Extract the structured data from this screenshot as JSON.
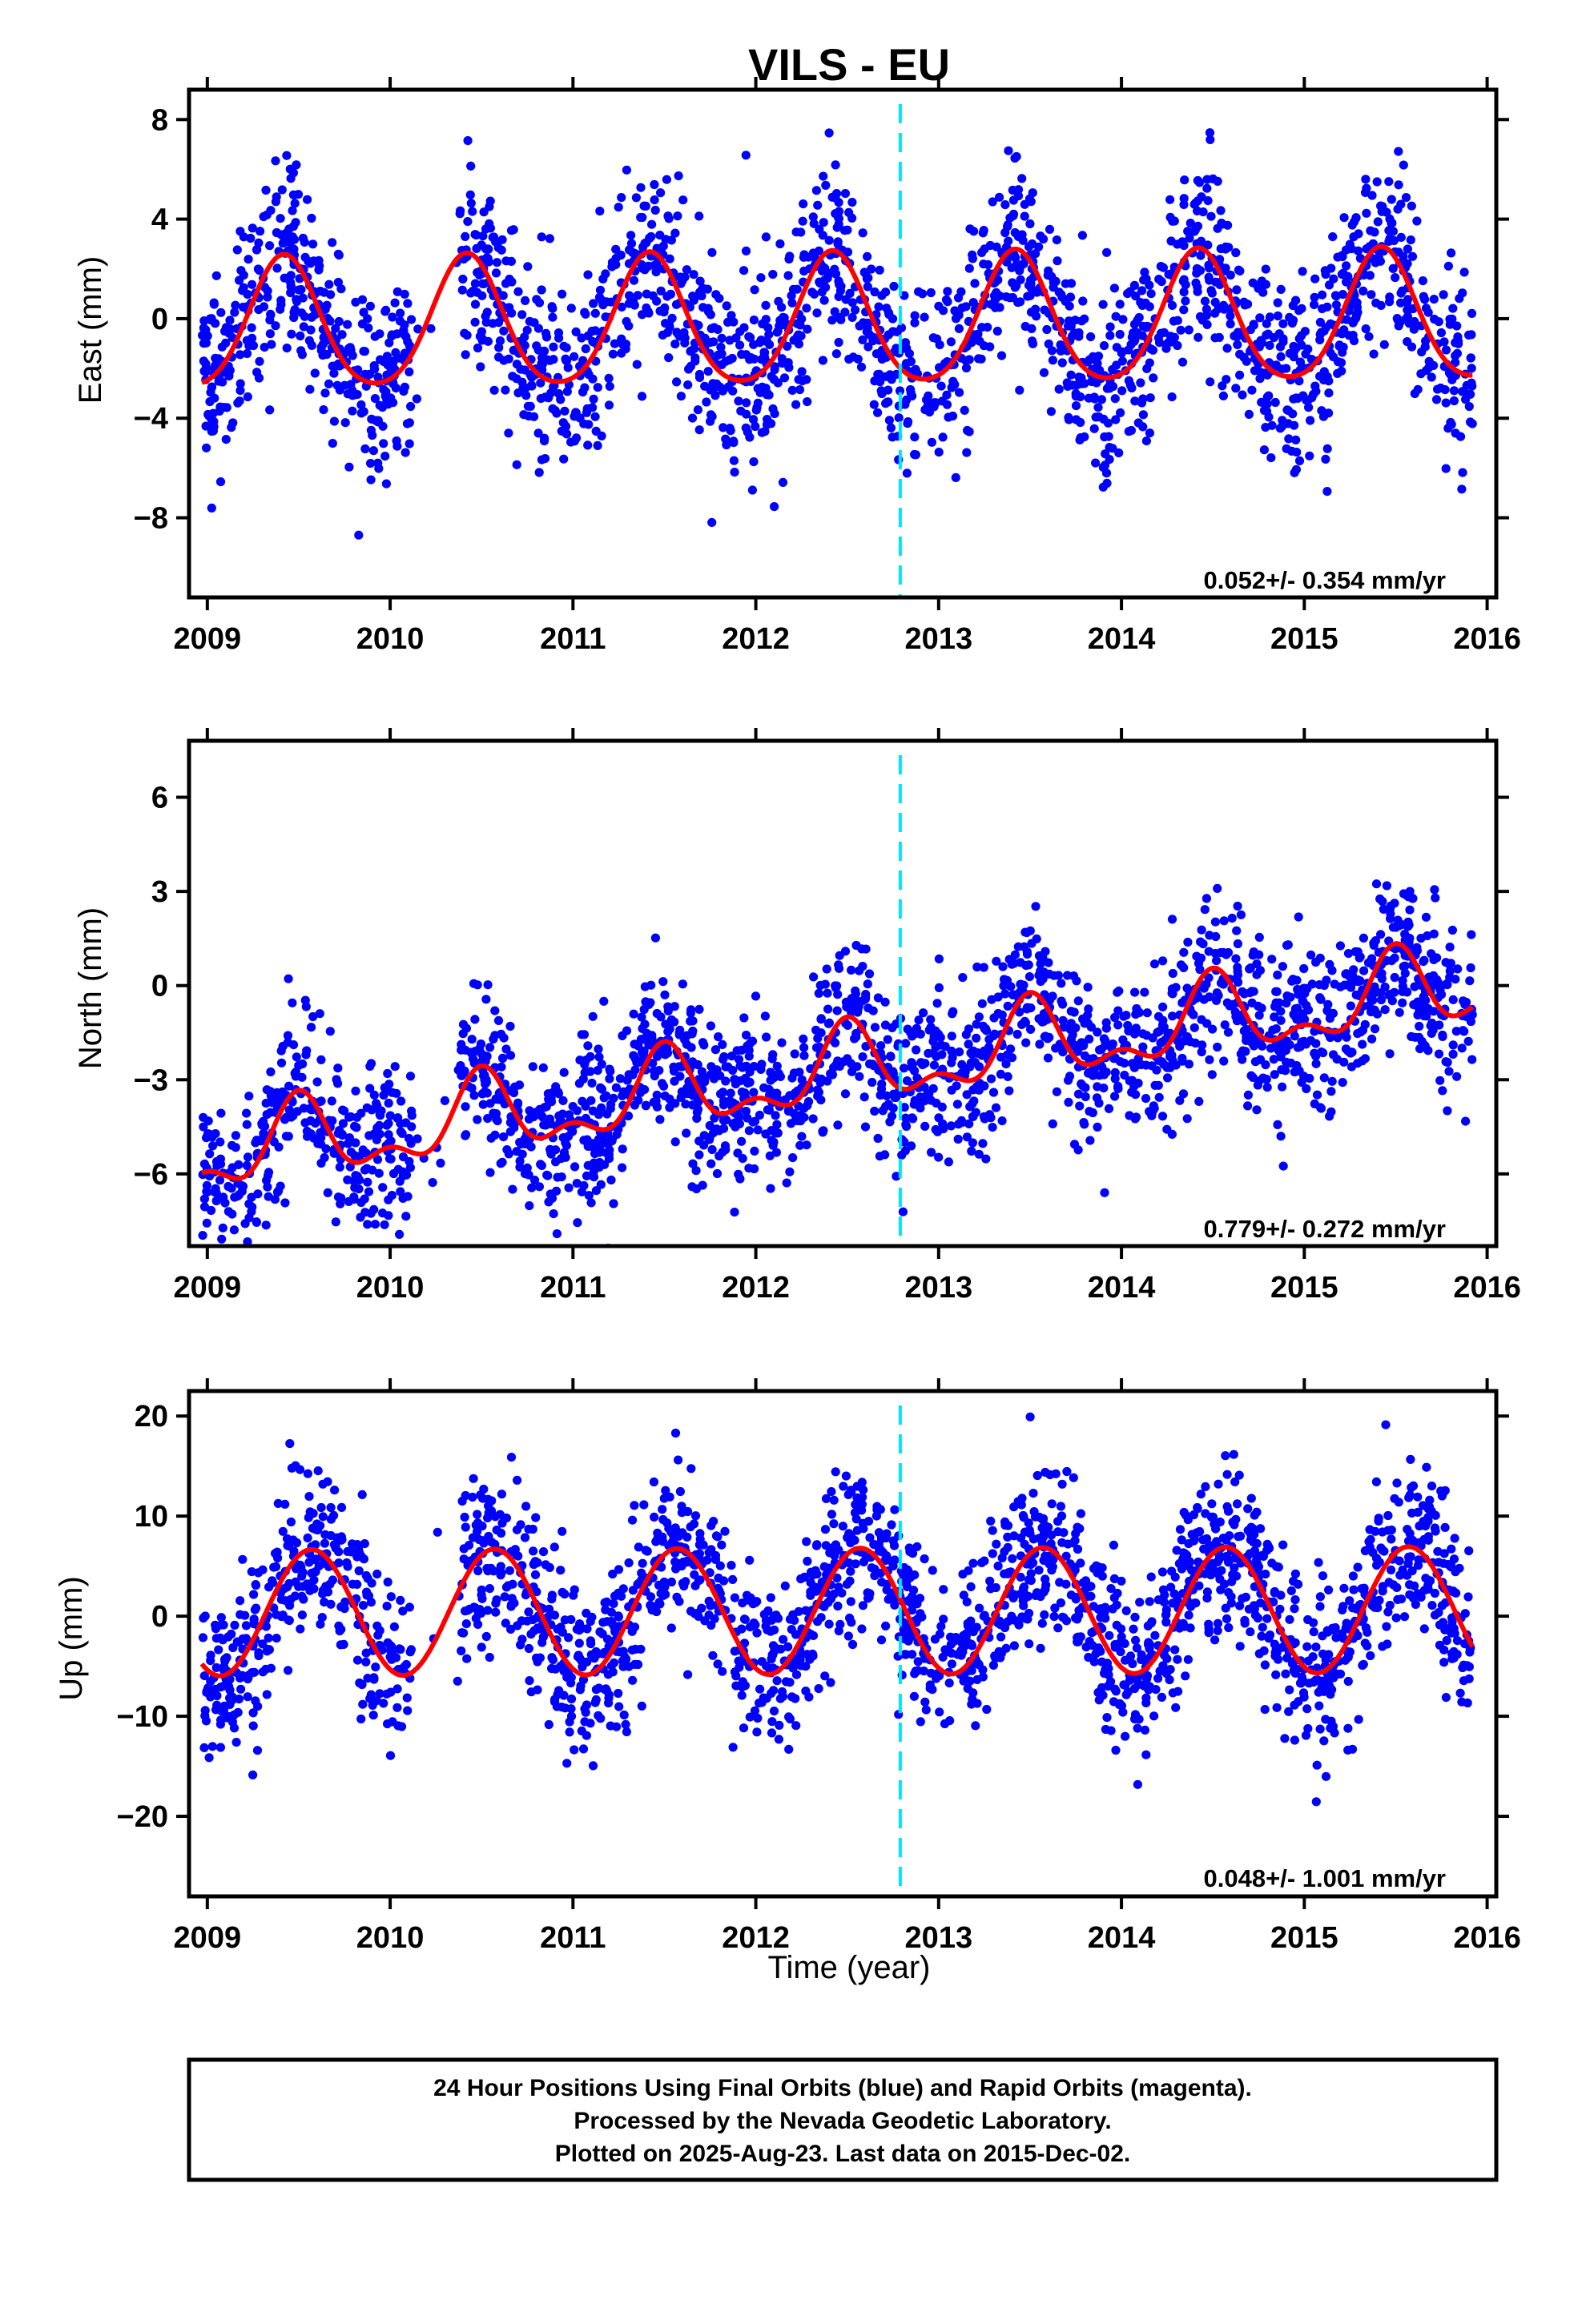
{
  "title": "VILS - EU",
  "xlabel": "Time (year)",
  "footer": {
    "lines": [
      "24 Hour Positions Using Final Orbits (blue) and Rapid Orbits (magenta).",
      "Processed by the Nevada Geodetic Laboratory.",
      "Plotted on 2025-Aug-23. Last data on 2015-Dec-02."
    ]
  },
  "colors": {
    "points": "#0000ff",
    "fit": "#ff0000",
    "event_line": "#00e5ff",
    "frame": "#000000"
  },
  "chart_data": [
    {
      "type": "scatter",
      "panel": "east",
      "ylabel": "East (mm)",
      "rate_label": "0.052+/- 0.354 mm/yr",
      "xlim": [
        2008.9,
        2016.05
      ],
      "ylim": [
        -11.2,
        9.2
      ],
      "xticks": [
        2009,
        2010,
        2011,
        2012,
        2013,
        2014,
        2015,
        2016
      ],
      "xtick_labels": [
        "2009",
        "2010",
        "2011",
        "2012",
        "2013",
        "2014",
        "2015",
        "2016"
      ],
      "yticks": [
        8,
        4,
        0,
        -4,
        -8
      ],
      "ytick_labels": [
        "8",
        "4",
        "0",
        "−4",
        "−8"
      ],
      "data_span": [
        2008.97,
        2015.92
      ],
      "event_line_x": 2012.79,
      "fit": {
        "offset": -0.2,
        "rate": 0.052,
        "amplitude": 2.6,
        "phase_peak": 0.42,
        "semiannual": 0.35
      },
      "scatter_sigma": 1.9
    },
    {
      "type": "scatter",
      "panel": "north",
      "ylabel": "North (mm)",
      "rate_label": "0.779+/- 0.272 mm/yr",
      "xlim": [
        2008.9,
        2016.05
      ],
      "ylim": [
        -8.3,
        7.8
      ],
      "xticks": [
        2009,
        2010,
        2011,
        2012,
        2013,
        2014,
        2015,
        2016
      ],
      "xtick_labels": [
        "2009",
        "2010",
        "2011",
        "2012",
        "2013",
        "2014",
        "2015",
        "2016"
      ],
      "yticks": [
        6,
        3,
        0,
        -3,
        -6
      ],
      "ytick_labels": [
        "6",
        "3",
        "0",
        "−3",
        "−6"
      ],
      "data_span": [
        2008.97,
        2015.92
      ],
      "event_line_x": 2012.79,
      "fit": {
        "offset": -2.7,
        "rate": 0.779,
        "amplitude": 1.1,
        "phase_peak": 0.5,
        "semiannual": 0.6
      },
      "scatter_sigma": 1.3
    },
    {
      "type": "scatter",
      "panel": "up",
      "ylabel": "Up (mm)",
      "rate_label": "0.048+/- 1.001 mm/yr",
      "xlim": [
        2008.9,
        2016.05
      ],
      "ylim": [
        -28,
        22.5
      ],
      "xticks": [
        2009,
        2010,
        2011,
        2012,
        2013,
        2014,
        2015,
        2016
      ],
      "xtick_labels": [
        "2009",
        "2010",
        "2011",
        "2012",
        "2013",
        "2014",
        "2015",
        "2016"
      ],
      "yticks": [
        20,
        10,
        0,
        -10,
        -20
      ],
      "ytick_labels": [
        "20",
        "10",
        "0",
        "−10",
        "−20"
      ],
      "data_span": [
        2008.97,
        2015.92
      ],
      "event_line_x": 2012.79,
      "fit": {
        "offset": 0.5,
        "rate": 0.048,
        "amplitude": 6.3,
        "phase_peak": 0.57,
        "semiannual": 0.0
      },
      "scatter_sigma": 4.3
    }
  ]
}
